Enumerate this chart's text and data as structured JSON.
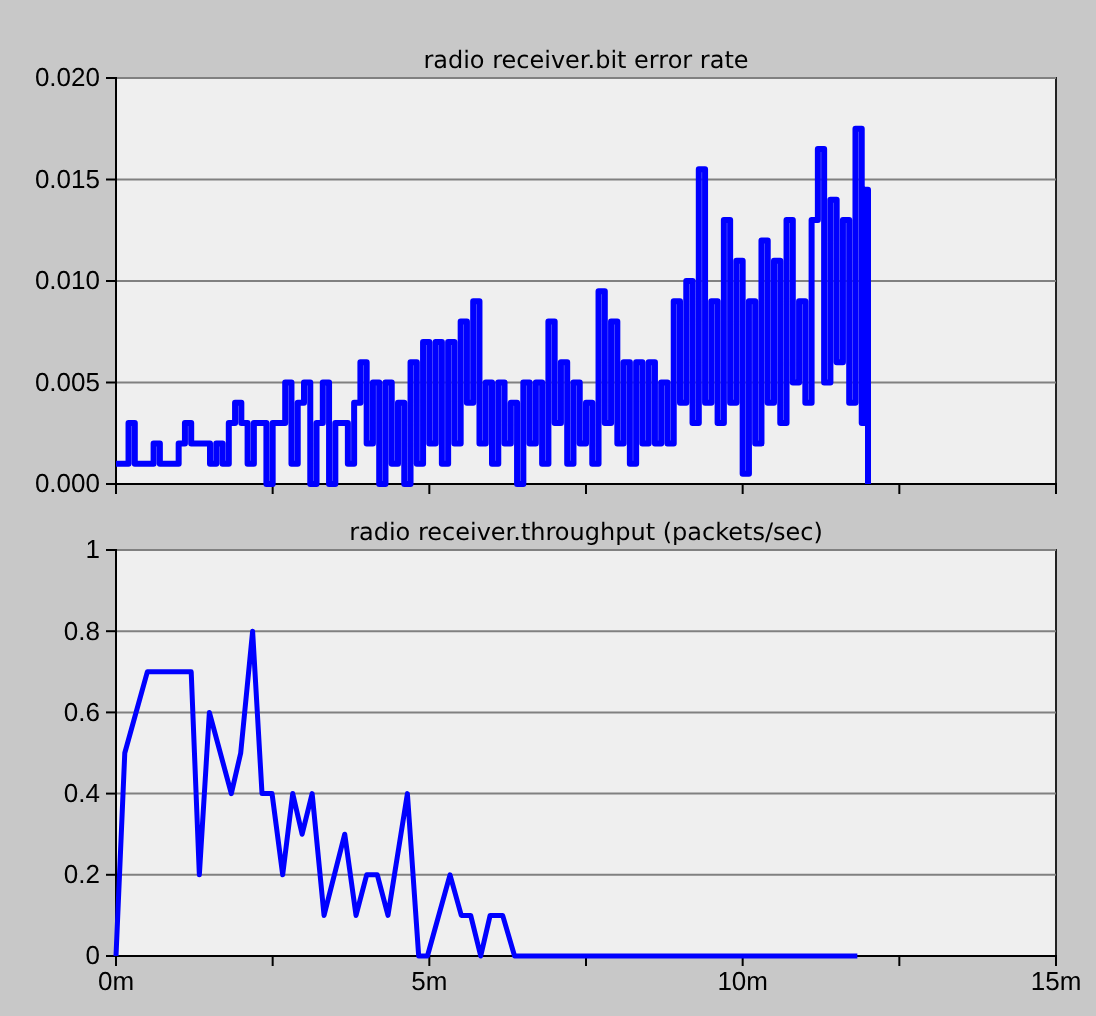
{
  "chart_data": [
    {
      "type": "step",
      "title": "radio receiver.bit error rate",
      "tick_labels": "y",
      "grid": "y",
      "x": [
        0,
        0.1,
        0.2,
        0.3,
        0.4,
        0.5,
        0.6,
        0.7,
        0.8,
        0.9,
        1.0,
        1.1,
        1.2,
        1.3,
        1.4,
        1.5,
        1.6,
        1.7,
        1.8,
        1.9,
        2.0,
        2.1,
        2.2,
        2.3,
        2.4,
        2.5,
        2.6,
        2.7,
        2.8,
        2.9,
        3.0,
        3.1,
        3.2,
        3.3,
        3.4,
        3.5,
        3.6,
        3.7,
        3.8,
        3.9,
        4.0,
        4.1,
        4.2,
        4.3,
        4.4,
        4.5,
        4.6,
        4.7,
        4.8,
        4.9,
        5.0,
        5.1,
        5.2,
        5.3,
        5.4,
        5.5,
        5.6,
        5.7,
        5.8,
        5.9,
        6.0,
        6.1,
        6.2,
        6.3,
        6.4,
        6.5,
        6.6,
        6.7,
        6.8,
        6.9,
        7.0,
        7.1,
        7.2,
        7.3,
        7.4,
        7.5,
        7.6,
        7.7,
        7.8,
        7.9,
        8.0,
        8.1,
        8.2,
        8.3,
        8.4,
        8.5,
        8.6,
        8.7,
        8.8,
        8.9,
        9.0,
        9.1,
        9.2,
        9.3,
        9.4,
        9.5,
        9.6,
        9.7,
        9.8,
        9.9,
        10.0,
        10.1,
        10.2,
        10.3,
        10.4,
        10.5,
        10.6,
        10.7,
        10.8,
        10.9,
        11.0,
        11.1,
        11.2,
        11.3,
        11.4,
        11.5,
        11.6,
        11.7,
        11.8,
        11.9,
        11.95,
        12.0
      ],
      "series": [
        {
          "color": "#0000ff",
          "values": [
            0.001,
            0.001,
            0.003,
            0.001,
            0.001,
            0.001,
            0.002,
            0.001,
            0.001,
            0.001,
            0.002,
            0.003,
            0.002,
            0.002,
            0.002,
            0.001,
            0.002,
            0.001,
            0.003,
            0.004,
            0.003,
            0.001,
            0.003,
            0.003,
            0,
            0.003,
            0.003,
            0.005,
            0.001,
            0.004,
            0.005,
            0,
            0.003,
            0.005,
            0,
            0.003,
            0.003,
            0.001,
            0.004,
            0.006,
            0.002,
            0.005,
            0,
            0.005,
            0.001,
            0.004,
            0,
            0.006,
            0.001,
            0.007,
            0.002,
            0.007,
            0.001,
            0.007,
            0.002,
            0.008,
            0.004,
            0.009,
            0.002,
            0.005,
            0.001,
            0.005,
            0.002,
            0.004,
            0,
            0.005,
            0.002,
            0.005,
            0.001,
            0.008,
            0.003,
            0.006,
            0.001,
            0.005,
            0.002,
            0.004,
            0.001,
            0.0095,
            0.003,
            0.008,
            0.002,
            0.006,
            0.001,
            0.006,
            0.002,
            0.006,
            0.002,
            0.005,
            0.002,
            0.009,
            0.004,
            0.01,
            0.003,
            0.0155,
            0.004,
            0.009,
            0.003,
            0.013,
            0.004,
            0.011,
            0.0005,
            0.009,
            0.002,
            0.012,
            0.004,
            0.011,
            0.003,
            0.013,
            0.005,
            0.009,
            0.004,
            0.013,
            0.0165,
            0.005,
            0.014,
            0.006,
            0.013,
            0.004,
            0.0175,
            0.003,
            0.0145,
            0
          ]
        }
      ],
      "xlim": [
        0,
        15
      ],
      "xticks": [
        0,
        {
          "value": 2.5,
          "label": null
        },
        5,
        {
          "value": 7.5,
          "label": null
        },
        10,
        {
          "value": 12.5,
          "label": null
        },
        15
      ],
      "ylim": [
        0,
        0.02
      ],
      "yticks": [
        {
          "value": 0,
          "label": "0.000"
        },
        {
          "value": 0.005,
          "label": "0.005"
        },
        {
          "value": 0.01,
          "label": "0.010"
        },
        {
          "value": 0.015,
          "label": "0.015"
        },
        {
          "value": 0.02,
          "label": "0.020"
        }
      ]
    },
    {
      "type": "line",
      "title": "radio receiver.throughput (packets/sec)",
      "grid": "y",
      "x": [
        0,
        0.14,
        0.5,
        1.2,
        1.33,
        1.49,
        1.84,
        1.99,
        2.18,
        2.33,
        2.49,
        2.66,
        2.82,
        2.97,
        3.13,
        3.32,
        3.65,
        3.83,
        4.0,
        4.17,
        4.34,
        4.65,
        4.83,
        4.97,
        5.33,
        5.51,
        5.66,
        5.82,
        5.97,
        6.17,
        6.36,
        11.83
      ],
      "series": [
        {
          "color": "#0000ff",
          "values": [
            0,
            0.5,
            0.7,
            0.7,
            0.2,
            0.6,
            0.4,
            0.5,
            0.8,
            0.4,
            0.4,
            0.2,
            0.4,
            0.3,
            0.4,
            0.1,
            0.3,
            0.1,
            0.2,
            0.2,
            0.1,
            0.4,
            0,
            0,
            0.2,
            0.1,
            0.1,
            0,
            0.1,
            0.1,
            0,
            0
          ]
        }
      ],
      "xlim": [
        0,
        15
      ],
      "xticks": [
        {
          "value": 0,
          "label": "0m"
        },
        {
          "value": 2.5,
          "label": null
        },
        {
          "value": 5,
          "label": "5m"
        },
        {
          "value": 7.5,
          "label": null
        },
        {
          "value": 10,
          "label": "10m"
        },
        {
          "value": 12.5,
          "label": null
        },
        {
          "value": 15,
          "label": "15m"
        }
      ],
      "ylim": [
        0,
        1
      ],
      "yticks": [
        0,
        0.2,
        0.4,
        0.6,
        0.8,
        1
      ]
    }
  ]
}
